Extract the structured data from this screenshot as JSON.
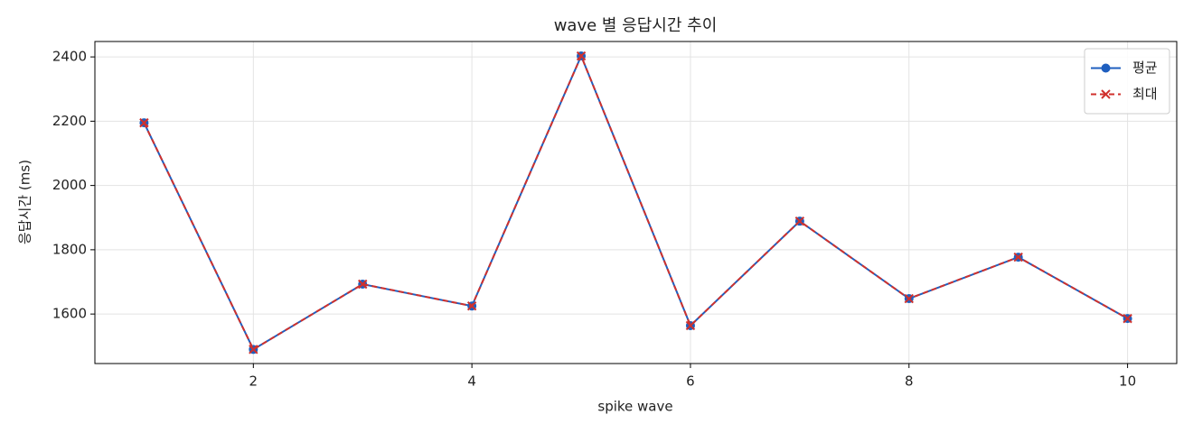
{
  "chart_data": {
    "type": "line",
    "title": "wave 별 응답시간 추이",
    "x_label": "spike wave",
    "y_label": "응답시간 (ms)",
    "x": [
      1,
      2,
      3,
      4,
      5,
      6,
      7,
      8,
      9,
      10
    ],
    "series": [
      {
        "name": "평균",
        "color": "#1f5fbf",
        "linestyle": "solid",
        "marker": "circle",
        "values": [
          2195,
          1490,
          1693,
          1625,
          2403,
          1564,
          1889,
          1648,
          1777,
          1586
        ]
      },
      {
        "name": "최대",
        "color": "#d0312d",
        "linestyle": "dashed",
        "marker": "x",
        "values": [
          2195,
          1490,
          1693,
          1625,
          2403,
          1564,
          1889,
          1648,
          1777,
          1586
        ]
      }
    ],
    "xlim": [
      0.55,
      10.45
    ],
    "xticks": [
      2,
      4,
      6,
      8,
      10
    ],
    "ylim": [
      1446,
      2448
    ],
    "yticks": [
      1600,
      1800,
      2000,
      2200,
      2400
    ],
    "grid": true,
    "legend": "upper right"
  }
}
